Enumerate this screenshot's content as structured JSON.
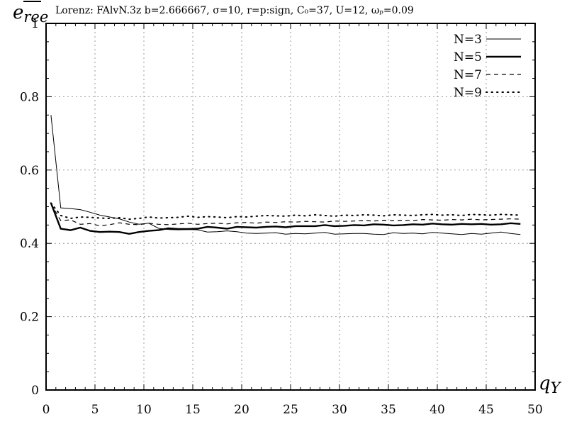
{
  "chart_data": {
    "type": "line",
    "title": "Lorenz: FAlvN.3z b=2.666667, σ=10, r=p:sign, C₀=37, U=12, ωₚ=0.09",
    "xlabel": "q_Y",
    "ylabel": "e_ree",
    "xlim": [
      0,
      50
    ],
    "ylim": [
      0,
      1
    ],
    "xticks": [
      0,
      5,
      10,
      15,
      20,
      25,
      30,
      35,
      40,
      45,
      50
    ],
    "yticks": [
      0,
      0.2,
      0.4,
      0.6,
      0.8,
      1
    ],
    "ytick_labels": [
      "0",
      "0.2",
      "0.4",
      "0.6",
      "0.8",
      "1"
    ],
    "grid": true,
    "legend_position": "top-right",
    "x": [
      0.5,
      1.5,
      2.5,
      3.5,
      4.5,
      5.5,
      6.5,
      7.5,
      8.5,
      9.5,
      10.5,
      11.5,
      12.5,
      13.5,
      14.5,
      15.5,
      16.5,
      17.5,
      18.5,
      19.5,
      20.5,
      21.5,
      22.5,
      23.5,
      24.5,
      25.5,
      26.5,
      27.5,
      28.5,
      29.5,
      30.5,
      31.5,
      32.5,
      33.5,
      34.5,
      35.5,
      36.5,
      37.5,
      38.5,
      39.5,
      40.5,
      41.5,
      42.5,
      43.5,
      44.5,
      45.5,
      46.5,
      47.5,
      48.5
    ],
    "series": [
      {
        "name": "N=3",
        "style": "thin-solid",
        "values": [
          0.75,
          0.497,
          0.495,
          0.492,
          0.485,
          0.477,
          0.472,
          0.467,
          0.458,
          0.452,
          0.455,
          0.441,
          0.438,
          0.437,
          0.438,
          0.437,
          0.431,
          0.432,
          0.434,
          0.432,
          0.428,
          0.427,
          0.428,
          0.429,
          0.425,
          0.427,
          0.426,
          0.428,
          0.43,
          0.425,
          0.426,
          0.427,
          0.427,
          0.425,
          0.424,
          0.429,
          0.427,
          0.428,
          0.426,
          0.43,
          0.428,
          0.426,
          0.424,
          0.427,
          0.425,
          0.428,
          0.431,
          0.427,
          0.424
        ]
      },
      {
        "name": "N=5",
        "style": "thick-solid",
        "values": [
          0.51,
          0.44,
          0.436,
          0.443,
          0.434,
          0.431,
          0.432,
          0.431,
          0.426,
          0.431,
          0.434,
          0.436,
          0.441,
          0.439,
          0.439,
          0.44,
          0.445,
          0.443,
          0.44,
          0.445,
          0.444,
          0.443,
          0.445,
          0.446,
          0.444,
          0.447,
          0.447,
          0.447,
          0.45,
          0.447,
          0.448,
          0.45,
          0.449,
          0.452,
          0.451,
          0.449,
          0.45,
          0.452,
          0.451,
          0.454,
          0.452,
          0.451,
          0.453,
          0.452,
          0.453,
          0.451,
          0.452,
          0.455,
          0.453
        ]
      },
      {
        "name": "N=7",
        "style": "dashed",
        "values": [
          0.508,
          0.462,
          0.464,
          0.452,
          0.454,
          0.448,
          0.451,
          0.456,
          0.452,
          0.451,
          0.455,
          0.452,
          0.451,
          0.453,
          0.455,
          0.452,
          0.454,
          0.455,
          0.453,
          0.456,
          0.457,
          0.455,
          0.458,
          0.457,
          0.459,
          0.458,
          0.46,
          0.459,
          0.458,
          0.461,
          0.46,
          0.461,
          0.462,
          0.461,
          0.463,
          0.462,
          0.463,
          0.462,
          0.465,
          0.464,
          0.463,
          0.465,
          0.464,
          0.466,
          0.464,
          0.465,
          0.466,
          0.467,
          0.466
        ]
      },
      {
        "name": "N=9",
        "style": "dotted",
        "values": [
          0.51,
          0.476,
          0.468,
          0.472,
          0.471,
          0.469,
          0.468,
          0.47,
          0.466,
          0.468,
          0.472,
          0.469,
          0.47,
          0.471,
          0.474,
          0.471,
          0.473,
          0.472,
          0.47,
          0.473,
          0.472,
          0.474,
          0.476,
          0.475,
          0.474,
          0.477,
          0.475,
          0.478,
          0.476,
          0.474,
          0.477,
          0.476,
          0.478,
          0.477,
          0.475,
          0.478,
          0.477,
          0.476,
          0.478,
          0.479,
          0.477,
          0.478,
          0.476,
          0.479,
          0.478,
          0.477,
          0.479,
          0.478,
          0.477
        ]
      }
    ]
  }
}
